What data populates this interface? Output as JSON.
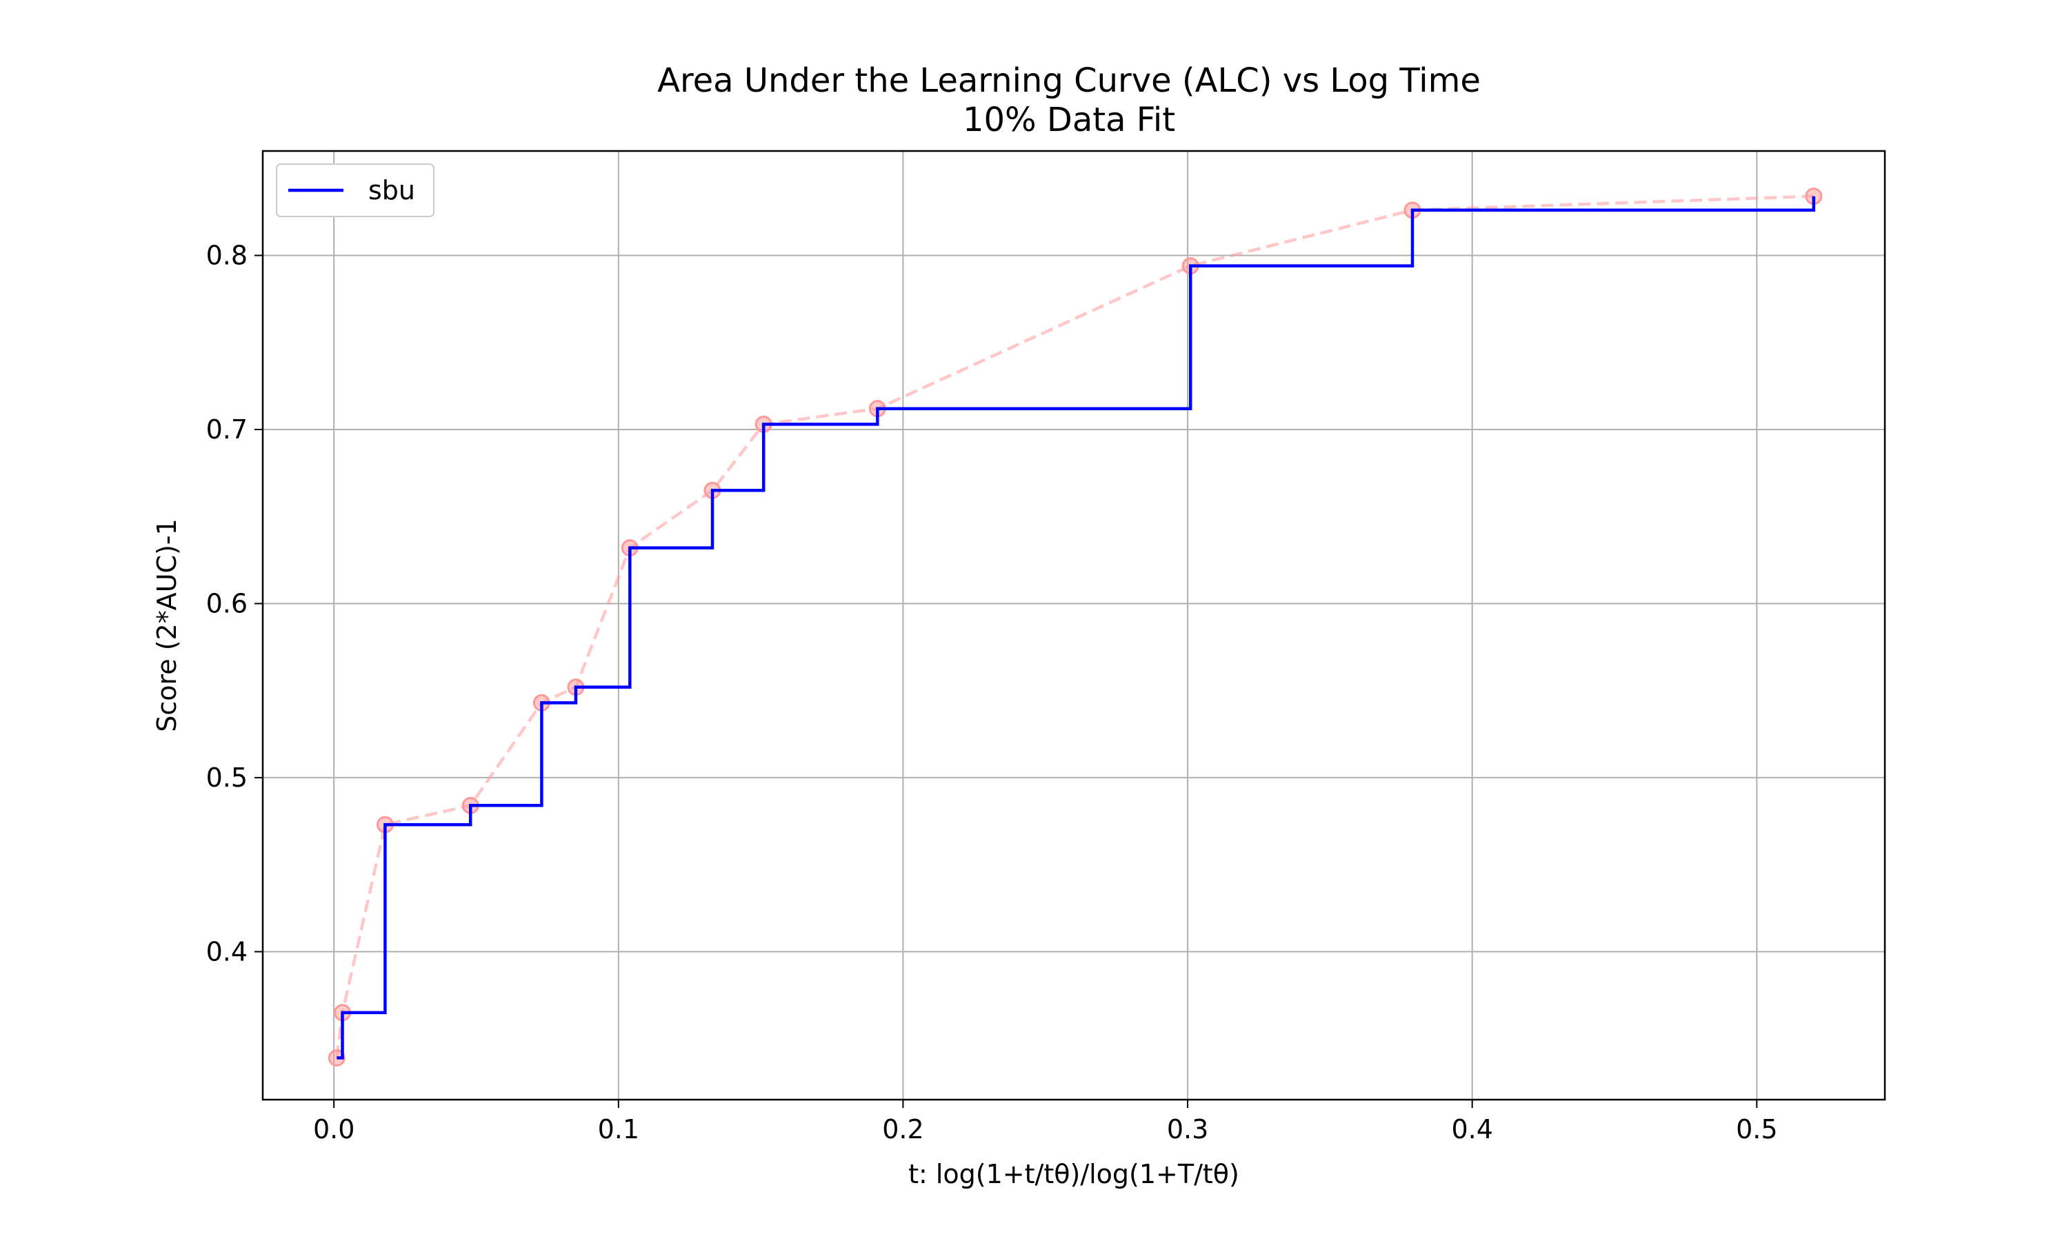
{
  "chart_data": {
    "type": "line",
    "title": "Area Under the Learning Curve (ALC) vs Log Time",
    "subtitle": "10% Data Fit",
    "xlabel": "t: log(1+t/tθ)/log(1+T/tθ)",
    "ylabel": "Score (2*AUC)-1",
    "xlim": [
      -0.025,
      0.545
    ],
    "ylim": [
      0.315,
      0.86
    ],
    "xticks": [
      0.0,
      0.1,
      0.2,
      0.3,
      0.4,
      0.5
    ],
    "xtick_labels": [
      "0.0",
      "0.1",
      "0.2",
      "0.3",
      "0.4",
      "0.5"
    ],
    "yticks": [
      0.4,
      0.5,
      0.6,
      0.7,
      0.8
    ],
    "ytick_labels": [
      "0.4",
      "0.5",
      "0.6",
      "0.7",
      "0.8"
    ],
    "grid": true,
    "legend_position": "top-left",
    "series": [
      {
        "name": "sbu",
        "style": "step-post",
        "color": "#0000ff",
        "x": [
          0.001,
          0.003,
          0.018,
          0.048,
          0.073,
          0.085,
          0.104,
          0.133,
          0.151,
          0.191,
          0.301,
          0.379,
          0.52
        ],
        "y": [
          0.339,
          0.365,
          0.473,
          0.484,
          0.543,
          0.552,
          0.632,
          0.665,
          0.703,
          0.712,
          0.794,
          0.826,
          0.834
        ]
      },
      {
        "style": "dashed-markers",
        "color": "#ff9999",
        "x": [
          0.001,
          0.003,
          0.018,
          0.048,
          0.073,
          0.085,
          0.104,
          0.133,
          0.151,
          0.191,
          0.301,
          0.379,
          0.52
        ],
        "y": [
          0.339,
          0.365,
          0.473,
          0.484,
          0.543,
          0.552,
          0.632,
          0.665,
          0.703,
          0.712,
          0.794,
          0.826,
          0.834
        ]
      }
    ]
  }
}
